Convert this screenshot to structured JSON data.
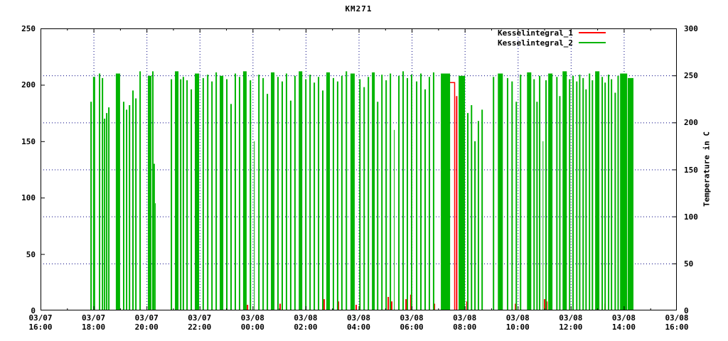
{
  "title": "KM271",
  "legend": {
    "entries": [
      {
        "label": "Kesselintegral_1",
        "color": "#ff0000"
      },
      {
        "label": "Kesselintegral_2",
        "color": "#00b400"
      }
    ]
  },
  "axes": {
    "y_left": {
      "min": 0,
      "max": 250,
      "ticks": [
        0,
        50,
        100,
        150,
        200,
        250
      ]
    },
    "y_right": {
      "min": 0,
      "max": 300,
      "ticks": [
        0,
        50,
        100,
        150,
        200,
        250,
        300
      ],
      "title": "Temperature in C"
    },
    "x": {
      "min_hours": 0,
      "max_hours": 24,
      "minor_tick_every_hours": 1,
      "major_tick_every_hours": 2,
      "major_labels": [
        {
          "date": "03/07",
          "time": "16:00"
        },
        {
          "date": "03/07",
          "time": "18:00"
        },
        {
          "date": "03/07",
          "time": "20:00"
        },
        {
          "date": "03/07",
          "time": "22:00"
        },
        {
          "date": "03/08",
          "time": "00:00"
        },
        {
          "date": "03/08",
          "time": "02:00"
        },
        {
          "date": "03/08",
          "time": "04:00"
        },
        {
          "date": "03/08",
          "time": "06:00"
        },
        {
          "date": "03/08",
          "time": "08:00"
        },
        {
          "date": "03/08",
          "time": "10:00"
        },
        {
          "date": "03/08",
          "time": "12:00"
        },
        {
          "date": "03/08",
          "time": "14:00"
        },
        {
          "date": "03/08",
          "time": "16:00"
        }
      ]
    }
  },
  "grid": {
    "color": "#000080",
    "h_lines_right_axis_values": [
      50,
      100,
      150,
      200,
      250
    ],
    "v_lines_hours": [
      2,
      4,
      6,
      8,
      10,
      12,
      14,
      16,
      18,
      20,
      22
    ]
  },
  "chart_data": {
    "type": "line",
    "title": "KM271",
    "x_unit": "hours since 03/07 16:00",
    "y_left_range": [
      0,
      250
    ],
    "y_right_range": [
      0,
      300
    ],
    "y_right_label": "Temperature in C",
    "note": "Spiky on/off boiler integral traces; each spike = [t_hours, peak_value_left_axis, line_width_px] rising from 0",
    "series": [
      {
        "name": "Kesselintegral_1",
        "color": "#ff0000",
        "plateau": {
          "t1": 15.29,
          "t2": 15.62,
          "v": 202
        },
        "spikes": [
          [
            7.78,
            5,
            2
          ],
          [
            9.01,
            6,
            2
          ],
          [
            9.79,
            5,
            2
          ],
          [
            10.67,
            10,
            2
          ],
          [
            10.81,
            12,
            2
          ],
          [
            11.21,
            8,
            2
          ],
          [
            11.88,
            5,
            2
          ],
          [
            13.09,
            12,
            2
          ],
          [
            13.22,
            8,
            2
          ],
          [
            13.76,
            10,
            2
          ],
          [
            13.94,
            14,
            2
          ],
          [
            14.83,
            6,
            2
          ],
          [
            15.67,
            190,
            2
          ],
          [
            16.06,
            8,
            2
          ],
          [
            17.89,
            6,
            2
          ],
          [
            18.99,
            10,
            2
          ],
          [
            19.07,
            8,
            2
          ],
          [
            21.27,
            6,
            1
          ],
          [
            22.18,
            12,
            2
          ]
        ]
      },
      {
        "name": "Kesselintegral_2",
        "color": "#00b400",
        "spikes": [
          [
            1.88,
            185,
            2
          ],
          [
            1.98,
            207,
            3
          ],
          [
            2.2,
            210,
            2
          ],
          [
            2.31,
            206,
            2
          ],
          [
            2.39,
            170,
            2
          ],
          [
            2.47,
            175,
            2
          ],
          [
            2.55,
            180,
            2
          ],
          [
            2.84,
            210,
            6
          ],
          [
            3.11,
            185,
            2
          ],
          [
            3.22,
            178,
            2
          ],
          [
            3.33,
            182,
            2
          ],
          [
            3.46,
            195,
            2
          ],
          [
            3.57,
            188,
            2
          ],
          [
            3.73,
            212,
            2
          ],
          [
            4.05,
            208,
            5
          ],
          [
            4.21,
            212,
            2
          ],
          [
            4.26,
            130,
            2
          ],
          [
            4.32,
            95,
            1
          ],
          [
            4.91,
            205,
            2
          ],
          [
            5.07,
            212,
            5
          ],
          [
            5.26,
            205,
            2
          ],
          [
            5.36,
            207,
            2
          ],
          [
            5.5,
            204,
            2
          ],
          [
            5.66,
            196,
            2
          ],
          [
            5.82,
            210,
            6
          ],
          [
            6.11,
            206,
            2
          ],
          [
            6.28,
            209,
            2
          ],
          [
            6.44,
            203,
            2
          ],
          [
            6.6,
            211,
            2
          ],
          [
            6.76,
            208,
            5
          ],
          [
            7.0,
            205,
            2
          ],
          [
            7.16,
            183,
            2
          ],
          [
            7.32,
            210,
            2
          ],
          [
            7.48,
            207,
            2
          ],
          [
            7.64,
            212,
            5
          ],
          [
            7.89,
            204,
            2
          ],
          [
            8.05,
            150,
            1
          ],
          [
            8.21,
            209,
            2
          ],
          [
            8.37,
            206,
            2
          ],
          [
            8.53,
            192,
            2
          ],
          [
            8.69,
            211,
            5
          ],
          [
            8.93,
            207,
            2
          ],
          [
            9.09,
            203,
            2
          ],
          [
            9.25,
            210,
            2
          ],
          [
            9.41,
            186,
            2
          ],
          [
            9.57,
            208,
            2
          ],
          [
            9.74,
            212,
            5
          ],
          [
            9.98,
            205,
            2
          ],
          [
            10.14,
            209,
            2
          ],
          [
            10.3,
            202,
            2
          ],
          [
            10.46,
            207,
            2
          ],
          [
            10.62,
            195,
            2
          ],
          [
            10.78,
            211,
            5
          ],
          [
            11.02,
            206,
            2
          ],
          [
            11.18,
            203,
            2
          ],
          [
            11.34,
            208,
            2
          ],
          [
            11.51,
            212,
            2
          ],
          [
            11.69,
            210,
            6
          ],
          [
            12.02,
            205,
            2
          ],
          [
            12.18,
            198,
            2
          ],
          [
            12.34,
            207,
            2
          ],
          [
            12.5,
            211,
            4
          ],
          [
            12.69,
            185,
            2
          ],
          [
            12.85,
            209,
            2
          ],
          [
            13.01,
            204,
            2
          ],
          [
            13.17,
            210,
            2
          ],
          [
            13.33,
            160,
            1
          ],
          [
            13.49,
            208,
            2
          ],
          [
            13.65,
            212,
            2
          ],
          [
            13.81,
            206,
            2
          ],
          [
            13.97,
            209,
            2
          ],
          [
            14.16,
            203,
            2
          ],
          [
            14.32,
            210,
            2
          ],
          [
            14.48,
            196,
            2
          ],
          [
            14.64,
            207,
            2
          ],
          [
            14.8,
            211,
            2
          ],
          [
            15.1,
            210,
            13
          ],
          [
            15.77,
            208,
            9
          ],
          [
            16.09,
            175,
            2
          ],
          [
            16.23,
            182,
            2
          ],
          [
            16.36,
            150,
            2
          ],
          [
            16.49,
            168,
            2
          ],
          [
            16.63,
            178,
            2
          ],
          [
            17.06,
            207,
            2
          ],
          [
            17.25,
            210,
            7
          ],
          [
            17.59,
            206,
            2
          ],
          [
            17.76,
            203,
            2
          ],
          [
            17.92,
            185,
            2
          ],
          [
            18.08,
            209,
            2
          ],
          [
            18.35,
            211,
            6
          ],
          [
            18.59,
            205,
            2
          ],
          [
            18.7,
            185,
            2
          ],
          [
            18.8,
            208,
            2
          ],
          [
            18.94,
            150,
            1
          ],
          [
            19.04,
            204,
            2
          ],
          [
            19.15,
            210,
            6
          ],
          [
            19.45,
            207,
            2
          ],
          [
            19.56,
            190,
            2
          ],
          [
            19.69,
            212,
            6
          ],
          [
            19.93,
            205,
            2
          ],
          [
            20.06,
            208,
            2
          ],
          [
            20.2,
            203,
            2
          ],
          [
            20.31,
            209,
            2
          ],
          [
            20.44,
            206,
            2
          ],
          [
            20.55,
            196,
            2
          ],
          [
            20.68,
            210,
            2
          ],
          [
            20.79,
            204,
            2
          ],
          [
            20.92,
            212,
            6
          ],
          [
            21.16,
            207,
            2
          ],
          [
            21.27,
            202,
            2
          ],
          [
            21.4,
            209,
            2
          ],
          [
            21.51,
            205,
            2
          ],
          [
            21.65,
            193,
            2
          ],
          [
            21.76,
            208,
            2
          ],
          [
            21.86,
            210,
            10
          ],
          [
            22.15,
            206,
            8
          ]
        ]
      }
    ]
  }
}
